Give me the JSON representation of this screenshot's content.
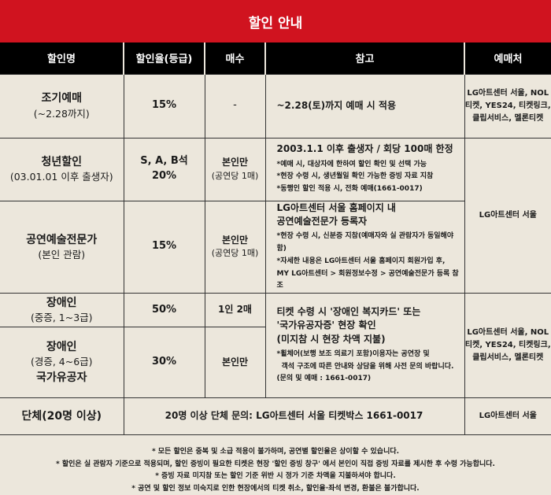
{
  "title": "할인 안내",
  "headers": [
    "할인명",
    "할인율(등급)",
    "매수",
    "참고",
    "예매처"
  ],
  "rows": [
    {
      "name": "조기예매",
      "name_sub": "(~2.28까지)",
      "rate": "15%",
      "qty": "-",
      "ref_main": "~2.28(토)까지 예매 시 적용",
      "seller": "LG아트센터 서울, NOL 티켓, YES24, 티켓링크, 클립서비스, 멜론티켓"
    },
    {
      "name": "청년할인",
      "name_sub": "(03.01.01 이후 출생자)",
      "rate": "S, A, B석",
      "rate2": "20%",
      "qty": "본인만",
      "qty_sub": "(공연당 1매)",
      "ref_main": "2003.1.1 이후 출생자 / 회당 100매 한정",
      "ref_notes": [
        "*예매 시, 대상자에 한하여 할인 확인 및 선택 가능",
        "*현장 수령 시, 생년월일 확인 가능한 증빙 자료 지참",
        "*동행인 할인 적용 시, 전화 예매(1661-0017)"
      ],
      "seller": "LG아트센터 서울"
    },
    {
      "name": "공연예술전문가",
      "name_sub": "(본인 관람)",
      "rate": "15%",
      "qty": "본인만",
      "qty_sub": "(공연당 1매)",
      "ref_main": "LG아트센터 서울 홈페이지 내",
      "ref_main2": "공연예술전문가 등록자",
      "ref_notes": [
        "*현장 수령 시, 신분증 지참(예매자와 실 관람자가 동일해야 함)",
        "*자세한 내용은 LG아트센터 서울 홈페이지 회원가입 후,",
        "MY LG아트센터 > 회원정보수정 > 공연예술전문가 등록 참조"
      ]
    },
    {
      "name": "장애인",
      "name_sub": "(중증, 1~3급)",
      "rate": "50%",
      "qty": "1인 2매",
      "ref_main": "티켓 수령 시 '장애인 복지카드' 또는",
      "ref_main2": "'국가유공자증' 현장 확인",
      "ref_main3": "(미지참 시 현장 차액 지불)",
      "ref_notes": [
        "*휠체어(보행 보조 의료기 포함)이용자는 공연장 및",
        "객석 구조에 따른 안내와 상담을 위해 사전 문의 바랍니다.",
        "(문의 및 예매 : 1661-0017)"
      ],
      "seller": "LG아트센터 서울, NOL 티켓, YES24, 티켓링크, 클립서비스, 멜론티켓"
    },
    {
      "name": "장애인",
      "name_sub": "(경증, 4~6급)",
      "name3": "국가유공자",
      "rate": "30%",
      "qty": "본인만"
    },
    {
      "name": "단체(20명 이상)",
      "ref_main": "20명 이상 단체 문의: LG아트센터 서울 티켓박스 1661-0017",
      "seller": "LG아트센터 서울"
    }
  ],
  "notes": [
    "* 모든 할인은 중복 및 소급 적용이 불가하며, 공연별 할인율은 상이할 수 있습니다.",
    "* 할인은 실 관람자 기준으로 적용되며, 할인 증빙이 필요한 티켓은 현장 '할인 증빙 창구' 에서 본인이 직접 증빙 자료를 제시한 후 수령 가능합니다.",
    "* 증빙 자료 미지참 또는 할인 기준 위반 시 정가 기준 차액을 지불하셔야 합니다.",
    "* 공연 및 할인 정보 미숙지로 인한 현장에서의 티켓 취소, 할인율·좌석 변경, 환불은 불가합니다."
  ],
  "colors": {
    "title_bg": "#d0131f",
    "header_bg": "#000000",
    "body_bg": "#ece7dc"
  }
}
